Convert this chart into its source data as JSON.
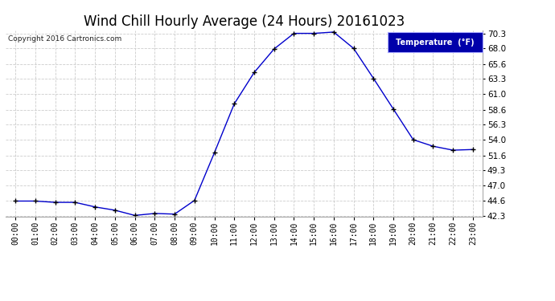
{
  "title": "Wind Chill Hourly Average (24 Hours) 20161023",
  "copyright_text": "Copyright 2016 Cartronics.com",
  "legend_label": "Temperature  (°F)",
  "x_labels": [
    "00:00",
    "01:00",
    "02:00",
    "03:00",
    "04:00",
    "05:00",
    "06:00",
    "07:00",
    "08:00",
    "09:00",
    "10:00",
    "11:00",
    "12:00",
    "13:00",
    "14:00",
    "15:00",
    "16:00",
    "17:00",
    "18:00",
    "19:00",
    "20:00",
    "21:00",
    "22:00",
    "23:00"
  ],
  "y_values": [
    44.6,
    44.6,
    44.4,
    44.4,
    43.7,
    43.2,
    42.4,
    42.7,
    42.6,
    44.7,
    52.0,
    59.5,
    64.3,
    67.9,
    70.3,
    70.3,
    70.5,
    68.0,
    63.4,
    58.7,
    54.0,
    53.0,
    52.4,
    52.5
  ],
  "line_color": "#0000cc",
  "marker": "+",
  "marker_color": "#000000",
  "bg_color": "#ffffff",
  "plot_bg_color": "#ffffff",
  "grid_color": "#cccccc",
  "ylim_min": 42.3,
  "ylim_max": 70.3,
  "yticks": [
    42.3,
    44.6,
    47.0,
    49.3,
    51.6,
    54.0,
    56.3,
    58.6,
    61.0,
    63.3,
    65.6,
    68.0,
    70.3
  ],
  "title_fontsize": 12,
  "legend_bg_color": "#0000aa",
  "legend_text_color": "#ffffff"
}
